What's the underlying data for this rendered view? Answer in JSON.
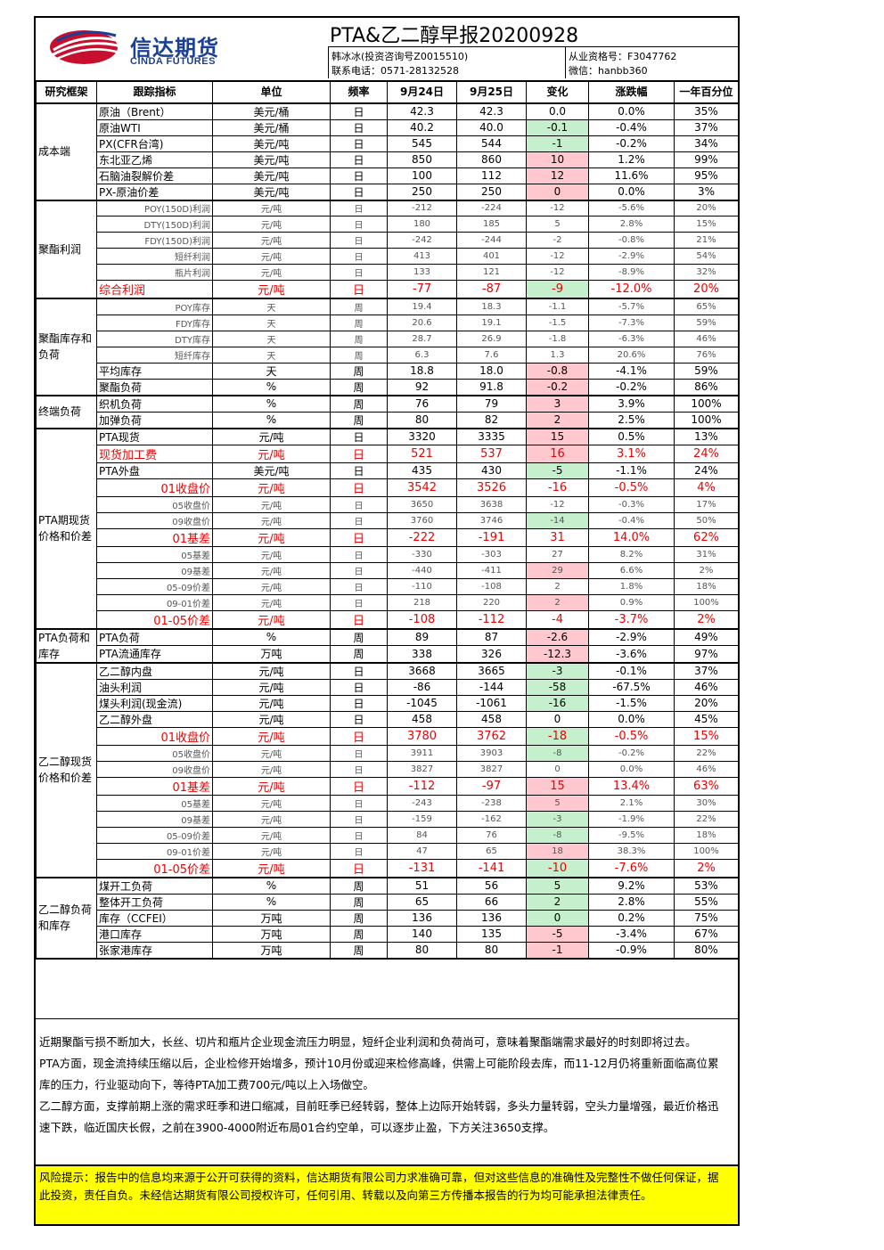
{
  "header": {
    "logo_cn": "信达期货",
    "logo_en": "CINDA FUTURES",
    "title": "PTA&乙二醇早报20200928",
    "author": "韩冰冰(投资咨询号Z0015510)",
    "phone": "联系电话：0571-28132528",
    "license": "从业资格号：F3047762",
    "wechat": "微信：hanbb360"
  },
  "columns": [
    "研究框架",
    "跟踪指标",
    "单位",
    "频率",
    "9月24日",
    "9月25日",
    "变化",
    "涨跌幅",
    "一年百分位"
  ],
  "colors": {
    "up_bg": "#ffc7ce",
    "down_bg": "#c6efce",
    "highlight": "#ee0000",
    "risk_bg": "#ffff00",
    "brand": "#1b3f95"
  },
  "groups": [
    {
      "name": "成本端",
      "rows": [
        {
          "ind": "原油（Brent）",
          "unit": "美元/桶",
          "freq": "日",
          "d1": "42.3",
          "d2": "42.3",
          "chg": "0.0",
          "pct": "0.0%",
          "yr": "35%",
          "style": "",
          "bg": ""
        },
        {
          "ind": "原油WTI",
          "unit": "美元/桶",
          "freq": "日",
          "d1": "40.2",
          "d2": "40.0",
          "chg": "-0.1",
          "pct": "-0.4%",
          "yr": "37%",
          "style": "",
          "bg": "neg"
        },
        {
          "ind": "PX(CFR台湾)",
          "unit": "美元/吨",
          "freq": "日",
          "d1": "545",
          "d2": "544",
          "chg": "-1",
          "pct": "-0.2%",
          "yr": "34%",
          "style": "",
          "bg": "neg"
        },
        {
          "ind": "东北亚乙烯",
          "unit": "美元/吨",
          "freq": "日",
          "d1": "850",
          "d2": "860",
          "chg": "10",
          "pct": "1.2%",
          "yr": "99%",
          "style": "",
          "bg": "pos"
        },
        {
          "ind": "石脑油裂解价差",
          "unit": "美元/吨",
          "freq": "日",
          "d1": "100",
          "d2": "112",
          "chg": "12",
          "pct": "11.6%",
          "yr": "95%",
          "style": "",
          "bg": "pos"
        },
        {
          "ind": "PX-原油价差",
          "unit": "美元/吨",
          "freq": "日",
          "d1": "250",
          "d2": "250",
          "chg": "0",
          "pct": "0.0%",
          "yr": "3%",
          "style": "",
          "bg": "pos"
        }
      ]
    },
    {
      "name": "聚酯利润",
      "rows": [
        {
          "ind": "POY(150D)利润",
          "unit": "元/吨",
          "freq": "日",
          "d1": "-212",
          "d2": "-224",
          "chg": "-12",
          "pct": "-5.6%",
          "yr": "20%",
          "style": "sub",
          "bg": ""
        },
        {
          "ind": "DTY(150D)利润",
          "unit": "元/吨",
          "freq": "日",
          "d1": "180",
          "d2": "185",
          "chg": "5",
          "pct": "2.8%",
          "yr": "15%",
          "style": "sub",
          "bg": ""
        },
        {
          "ind": "FDY(150D)利润",
          "unit": "元/吨",
          "freq": "日",
          "d1": "-242",
          "d2": "-244",
          "chg": "-2",
          "pct": "-0.8%",
          "yr": "21%",
          "style": "sub",
          "bg": ""
        },
        {
          "ind": "短纤利润",
          "unit": "元/吨",
          "freq": "日",
          "d1": "413",
          "d2": "401",
          "chg": "-12",
          "pct": "-2.9%",
          "yr": "54%",
          "style": "sub",
          "bg": ""
        },
        {
          "ind": "瓶片利润",
          "unit": "元/吨",
          "freq": "日",
          "d1": "133",
          "d2": "121",
          "chg": "-12",
          "pct": "-8.9%",
          "yr": "32%",
          "style": "sub",
          "bg": ""
        },
        {
          "ind": "综合利润",
          "unit": "元/吨",
          "freq": "日",
          "d1": "-77",
          "d2": "-87",
          "chg": "-9",
          "pct": "-12.0%",
          "yr": "20%",
          "style": "redl",
          "bg": "neg"
        }
      ]
    },
    {
      "name": "聚酯库存和负荷",
      "rows": [
        {
          "ind": "POY库存",
          "unit": "天",
          "freq": "周",
          "d1": "19.4",
          "d2": "18.3",
          "chg": "-1.1",
          "pct": "-5.7%",
          "yr": "65%",
          "style": "sub",
          "bg": ""
        },
        {
          "ind": "FDY库存",
          "unit": "天",
          "freq": "周",
          "d1": "20.6",
          "d2": "19.1",
          "chg": "-1.5",
          "pct": "-7.3%",
          "yr": "59%",
          "style": "sub",
          "bg": ""
        },
        {
          "ind": "DTY库存",
          "unit": "天",
          "freq": "周",
          "d1": "28.7",
          "d2": "26.9",
          "chg": "-1.8",
          "pct": "-6.3%",
          "yr": "46%",
          "style": "sub",
          "bg": ""
        },
        {
          "ind": "短纤库存",
          "unit": "天",
          "freq": "周",
          "d1": "6.3",
          "d2": "7.6",
          "chg": "1.3",
          "pct": "20.6%",
          "yr": "76%",
          "style": "sub",
          "bg": ""
        },
        {
          "ind": "平均库存",
          "unit": "天",
          "freq": "周",
          "d1": "18.8",
          "d2": "18.0",
          "chg": "-0.8",
          "pct": "-4.1%",
          "yr": "59%",
          "style": "",
          "bg": "pos"
        },
        {
          "ind": "聚酯负荷",
          "unit": "%",
          "freq": "周",
          "d1": "92",
          "d2": "91.8",
          "chg": "-0.2",
          "pct": "-0.2%",
          "yr": "86%",
          "style": "",
          "bg": "pos"
        }
      ]
    },
    {
      "name": "终端负荷",
      "rows": [
        {
          "ind": "织机负荷",
          "unit": "%",
          "freq": "周",
          "d1": "76",
          "d2": "79",
          "chg": "3",
          "pct": "3.9%",
          "yr": "100%",
          "style": "",
          "bg": "pos"
        },
        {
          "ind": "加弹负荷",
          "unit": "%",
          "freq": "周",
          "d1": "80",
          "d2": "82",
          "chg": "2",
          "pct": "2.5%",
          "yr": "100%",
          "style": "",
          "bg": "pos"
        }
      ]
    },
    {
      "name": "PTA期现货价格和价差",
      "rows": [
        {
          "ind": "PTA现货",
          "unit": "元/吨",
          "freq": "日",
          "d1": "3320",
          "d2": "3335",
          "chg": "15",
          "pct": "0.5%",
          "yr": "13%",
          "style": "",
          "bg": "pos"
        },
        {
          "ind": "现货加工费",
          "unit": "元/吨",
          "freq": "日",
          "d1": "521",
          "d2": "537",
          "chg": "16",
          "pct": "3.1%",
          "yr": "24%",
          "style": "redl",
          "bg": "pos"
        },
        {
          "ind": "PTA外盘",
          "unit": "美元/吨",
          "freq": "日",
          "d1": "435",
          "d2": "430",
          "chg": "-5",
          "pct": "-1.1%",
          "yr": "24%",
          "style": "",
          "bg": "neg"
        },
        {
          "ind": "01收盘价",
          "unit": "元/吨",
          "freq": "日",
          "d1": "3542",
          "d2": "3526",
          "chg": "-16",
          "pct": "-0.5%",
          "yr": "4%",
          "style": "red",
          "bg": ""
        },
        {
          "ind": "05收盘价",
          "unit": "元/吨",
          "freq": "日",
          "d1": "3650",
          "d2": "3638",
          "chg": "-12",
          "pct": "-0.3%",
          "yr": "17%",
          "style": "sub",
          "bg": ""
        },
        {
          "ind": "09收盘价",
          "unit": "元/吨",
          "freq": "日",
          "d1": "3760",
          "d2": "3746",
          "chg": "-14",
          "pct": "-0.4%",
          "yr": "50%",
          "style": "sub",
          "bg": "neg"
        },
        {
          "ind": "01基差",
          "unit": "元/吨",
          "freq": "日",
          "d1": "-222",
          "d2": "-191",
          "chg": "31",
          "pct": "14.0%",
          "yr": "62%",
          "style": "red",
          "bg": ""
        },
        {
          "ind": "05基差",
          "unit": "元/吨",
          "freq": "日",
          "d1": "-330",
          "d2": "-303",
          "chg": "27",
          "pct": "8.2%",
          "yr": "31%",
          "style": "sub",
          "bg": ""
        },
        {
          "ind": "09基差",
          "unit": "元/吨",
          "freq": "日",
          "d1": "-440",
          "d2": "-411",
          "chg": "29",
          "pct": "6.6%",
          "yr": "2%",
          "style": "sub",
          "bg": "pos"
        },
        {
          "ind": "05-09价差",
          "unit": "元/吨",
          "freq": "日",
          "d1": "-110",
          "d2": "-108",
          "chg": "2",
          "pct": "1.8%",
          "yr": "18%",
          "style": "sub",
          "bg": ""
        },
        {
          "ind": "09-01价差",
          "unit": "元/吨",
          "freq": "日",
          "d1": "218",
          "d2": "220",
          "chg": "2",
          "pct": "0.9%",
          "yr": "100%",
          "style": "sub",
          "bg": "pos"
        },
        {
          "ind": "01-05价差",
          "unit": "元/吨",
          "freq": "日",
          "d1": "-108",
          "d2": "-112",
          "chg": "-4",
          "pct": "-3.7%",
          "yr": "2%",
          "style": "red",
          "bg": ""
        }
      ]
    },
    {
      "name": "PTA负荷和库存",
      "rows": [
        {
          "ind": "PTA负荷",
          "unit": "%",
          "freq": "周",
          "d1": "89",
          "d2": "87",
          "chg": "-2.6",
          "pct": "-2.9%",
          "yr": "49%",
          "style": "",
          "bg": "pos"
        },
        {
          "ind": "PTA流通库存",
          "unit": "万吨",
          "freq": "周",
          "d1": "338",
          "d2": "326",
          "chg": "-12.3",
          "pct": "-3.6%",
          "yr": "97%",
          "style": "",
          "bg": "pos"
        }
      ]
    },
    {
      "name": "乙二醇现货价格和价差",
      "rows": [
        {
          "ind": "乙二醇内盘",
          "unit": "元/吨",
          "freq": "日",
          "d1": "3668",
          "d2": "3665",
          "chg": "-3",
          "pct": "-0.1%",
          "yr": "37%",
          "style": "",
          "bg": "neg"
        },
        {
          "ind": "油头利润",
          "unit": "元/吨",
          "freq": "日",
          "d1": "-86",
          "d2": "-144",
          "chg": "-58",
          "pct": "-67.5%",
          "yr": "46%",
          "style": "",
          "bg": "neg"
        },
        {
          "ind": "煤头利润(现金流)",
          "unit": "元/吨",
          "freq": "日",
          "d1": "-1045",
          "d2": "-1061",
          "chg": "-16",
          "pct": "-1.5%",
          "yr": "20%",
          "style": "",
          "bg": "neg"
        },
        {
          "ind": "乙二醇外盘",
          "unit": "元/吨",
          "freq": "日",
          "d1": "458",
          "d2": "458",
          "chg": "0",
          "pct": "0.0%",
          "yr": "45%",
          "style": "",
          "bg": ""
        },
        {
          "ind": "01收盘价",
          "unit": "元/吨",
          "freq": "日",
          "d1": "3780",
          "d2": "3762",
          "chg": "-18",
          "pct": "-0.5%",
          "yr": "15%",
          "style": "red",
          "bg": "neg"
        },
        {
          "ind": "05收盘价",
          "unit": "元/吨",
          "freq": "日",
          "d1": "3911",
          "d2": "3903",
          "chg": "-8",
          "pct": "-0.2%",
          "yr": "22%",
          "style": "sub",
          "bg": "neg"
        },
        {
          "ind": "09收盘价",
          "unit": "元/吨",
          "freq": "日",
          "d1": "3827",
          "d2": "3827",
          "chg": "0",
          "pct": "0.0%",
          "yr": "46%",
          "style": "sub",
          "bg": ""
        },
        {
          "ind": "01基差",
          "unit": "元/吨",
          "freq": "日",
          "d1": "-112",
          "d2": "-97",
          "chg": "15",
          "pct": "13.4%",
          "yr": "63%",
          "style": "red",
          "bg": "pos"
        },
        {
          "ind": "05基差",
          "unit": "元/吨",
          "freq": "日",
          "d1": "-243",
          "d2": "-238",
          "chg": "5",
          "pct": "2.1%",
          "yr": "30%",
          "style": "sub",
          "bg": "pos"
        },
        {
          "ind": "09基差",
          "unit": "元/吨",
          "freq": "日",
          "d1": "-159",
          "d2": "-162",
          "chg": "-3",
          "pct": "-1.9%",
          "yr": "22%",
          "style": "sub",
          "bg": "neg"
        },
        {
          "ind": "05-09价差",
          "unit": "元/吨",
          "freq": "日",
          "d1": "84",
          "d2": "76",
          "chg": "-8",
          "pct": "-9.5%",
          "yr": "18%",
          "style": "sub",
          "bg": "neg"
        },
        {
          "ind": "09-01价差",
          "unit": "元/吨",
          "freq": "日",
          "d1": "47",
          "d2": "65",
          "chg": "18",
          "pct": "38.3%",
          "yr": "100%",
          "style": "sub",
          "bg": "pos"
        },
        {
          "ind": "01-05价差",
          "unit": "元/吨",
          "freq": "日",
          "d1": "-131",
          "d2": "-141",
          "chg": "-10",
          "pct": "-7.6%",
          "yr": "2%",
          "style": "red",
          "bg": "neg"
        }
      ]
    },
    {
      "name": "乙二醇负荷和库存",
      "rows": [
        {
          "ind": "煤开工负荷",
          "unit": "%",
          "freq": "周",
          "d1": "51",
          "d2": "56",
          "chg": "5",
          "pct": "9.2%",
          "yr": "53%",
          "style": "",
          "bg": "neg"
        },
        {
          "ind": "整体开工负荷",
          "unit": "%",
          "freq": "周",
          "d1": "65",
          "d2": "66",
          "chg": "2",
          "pct": "2.8%",
          "yr": "55%",
          "style": "",
          "bg": "neg"
        },
        {
          "ind": "库存（CCFEI）",
          "unit": "万吨",
          "freq": "周",
          "d1": "136",
          "d2": "136",
          "chg": "0",
          "pct": "0.2%",
          "yr": "75%",
          "style": "",
          "bg": "neg"
        },
        {
          "ind": "港口库存",
          "unit": "万吨",
          "freq": "周",
          "d1": "140",
          "d2": "135",
          "chg": "-5",
          "pct": "-3.4%",
          "yr": "67%",
          "style": "",
          "bg": "pos"
        },
        {
          "ind": "张家港库存",
          "unit": "万吨",
          "freq": "周",
          "d1": "80",
          "d2": "80",
          "chg": "-1",
          "pct": "-0.9%",
          "yr": "80%",
          "style": "",
          "bg": "pos"
        }
      ]
    }
  ],
  "commentary": [
    "近期聚酯亏损不断加大，长丝、切片和瓶片企业现金流压力明显，短纤企业利润和负荷尚可，意味着聚酯端需求最好的时刻即将过去。",
    "PTA方面，现金流持续压缩以后，企业检修开始增多，预计10月份或迎来检修高峰，供需上可能阶段去库，而11-12月仍将重新面临高位累库的压力，行业驱动向下，等待PTA加工费700元/吨以上入场做空。",
    "乙二醇方面，支撑前期上涨的需求旺季和进口缩减，目前旺季已经转弱，整体上边际开始转弱，多头力量转弱，空头力量增强，最近价格迅速下跌，临近国庆长假，之前在3900-4000附近布局01合约空单，可以逐步止盈，下方关注3650支撑。"
  ],
  "risk": "风险提示：报告中的信息均来源于公开可获得的资料，信达期货有限公司力求准确可靠，但对这些信息的准确性及完整性不做任何保证，据此投资，责任自负。未经信达期货有限公司授权许可，任何引用、转载以及向第三方传播本报告的行为均可能承担法律责任。"
}
